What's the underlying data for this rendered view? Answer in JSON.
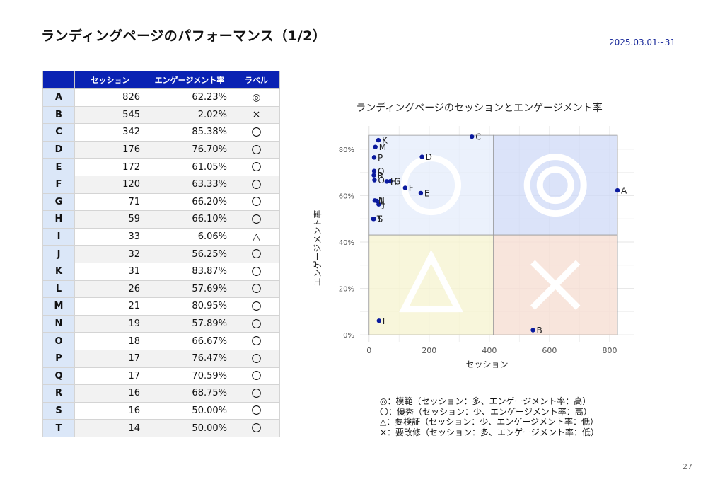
{
  "page": {
    "title": "ランディングページのパフォーマンス（1/2）",
    "date_range": "2025.03.01~31",
    "page_number": "27"
  },
  "table": {
    "headers": [
      "",
      "セッション",
      "エンゲージメント率",
      "ラベル"
    ],
    "rows": [
      [
        "A",
        "826",
        "62.23%",
        "◎"
      ],
      [
        "B",
        "545",
        "2.02%",
        "×"
      ],
      [
        "C",
        "342",
        "85.38%",
        "〇"
      ],
      [
        "D",
        "176",
        "76.70%",
        "〇"
      ],
      [
        "E",
        "172",
        "61.05%",
        "〇"
      ],
      [
        "F",
        "120",
        "63.33%",
        "〇"
      ],
      [
        "G",
        "71",
        "66.20%",
        "〇"
      ],
      [
        "H",
        "59",
        "66.10%",
        "〇"
      ],
      [
        "I",
        "33",
        "6.06%",
        "△"
      ],
      [
        "J",
        "32",
        "56.25%",
        "〇"
      ],
      [
        "K",
        "31",
        "83.87%",
        "〇"
      ],
      [
        "L",
        "26",
        "57.69%",
        "〇"
      ],
      [
        "M",
        "21",
        "80.95%",
        "〇"
      ],
      [
        "N",
        "19",
        "57.89%",
        "〇"
      ],
      [
        "O",
        "18",
        "66.67%",
        "〇"
      ],
      [
        "P",
        "17",
        "76.47%",
        "〇"
      ],
      [
        "Q",
        "17",
        "70.59%",
        "〇"
      ],
      [
        "R",
        "16",
        "68.75%",
        "〇"
      ],
      [
        "S",
        "16",
        "50.00%",
        "〇"
      ],
      [
        "T",
        "14",
        "50.00%",
        "〇"
      ]
    ]
  },
  "chart_data": {
    "type": "scatter",
    "title": "ランディングページのセッションとエンゲージメント率",
    "xlabel": "セッション",
    "ylabel": "エンゲージメント率",
    "xlim": [
      -30,
      880
    ],
    "ylim": [
      -0.03,
      0.9
    ],
    "x_ticks": [
      0,
      200,
      400,
      600,
      800
    ],
    "y_ticks": [
      0,
      0.2,
      0.4,
      0.6,
      0.8
    ],
    "y_tick_labels": [
      "0%",
      "20%",
      "40%",
      "60%",
      "80%"
    ],
    "grid": true,
    "quadrant_split": {
      "x": 413,
      "y": 0.43
    },
    "quadrant_colors": {
      "top_left": "#e4ecfb",
      "top_right": "#cfdaf7",
      "bottom_left": "#f6f4d2",
      "bottom_right": "#f6dfd3"
    },
    "quadrant_symbols": {
      "top_left": "circle",
      "top_right": "double-circle",
      "bottom_left": "triangle",
      "bottom_right": "cross"
    },
    "point_color": "#0a1a9e",
    "points": [
      {
        "label": "A",
        "x": 826,
        "y": 0.6223
      },
      {
        "label": "B",
        "x": 545,
        "y": 0.0202
      },
      {
        "label": "C",
        "x": 342,
        "y": 0.8538
      },
      {
        "label": "D",
        "x": 176,
        "y": 0.767
      },
      {
        "label": "E",
        "x": 172,
        "y": 0.6105
      },
      {
        "label": "F",
        "x": 120,
        "y": 0.6333
      },
      {
        "label": "G",
        "x": 71,
        "y": 0.662
      },
      {
        "label": "H",
        "x": 59,
        "y": 0.661
      },
      {
        "label": "I",
        "x": 33,
        "y": 0.0606
      },
      {
        "label": "J",
        "x": 32,
        "y": 0.5625
      },
      {
        "label": "K",
        "x": 31,
        "y": 0.8387
      },
      {
        "label": "L",
        "x": 26,
        "y": 0.5769
      },
      {
        "label": "M",
        "x": 21,
        "y": 0.8095
      },
      {
        "label": "N",
        "x": 19,
        "y": 0.5789
      },
      {
        "label": "O",
        "x": 18,
        "y": 0.6667
      },
      {
        "label": "P",
        "x": 17,
        "y": 0.7647
      },
      {
        "label": "Q",
        "x": 17,
        "y": 0.7059
      },
      {
        "label": "R",
        "x": 16,
        "y": 0.6875
      },
      {
        "label": "S",
        "x": 16,
        "y": 0.5
      },
      {
        "label": "T",
        "x": 14,
        "y": 0.5
      }
    ]
  },
  "legend": [
    "◎：模範（セッション：多、エンゲージメント率：高）",
    "〇：優秀（セッション：少、エンゲージメント率：高）",
    "△：要検証（セッション：少、エンゲージメント率：低）",
    "×：要改修（セッション：多、エンゲージメント率：低）"
  ]
}
